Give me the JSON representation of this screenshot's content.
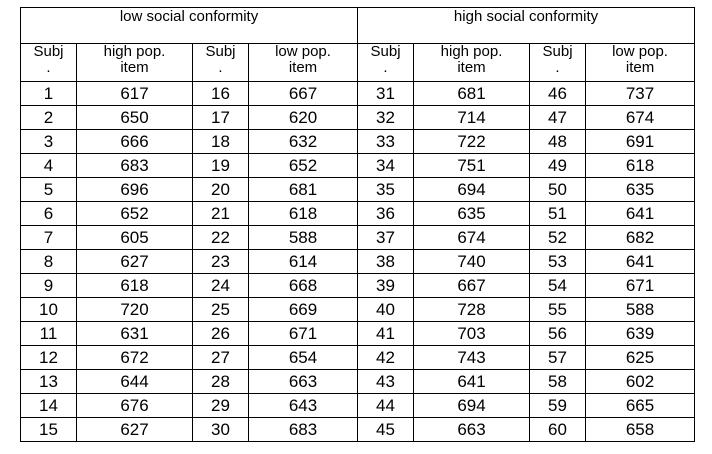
{
  "groups": {
    "low": "low social conformity",
    "high": "high social conformity"
  },
  "columns": {
    "subj_line1": "Subj",
    "subj_line2": ".",
    "high_pop_line1": "high pop.",
    "high_pop_line2": "item",
    "low_pop_line1": "low pop.",
    "low_pop_line2": "item"
  },
  "rows": [
    [
      "1",
      "617",
      "16",
      "667",
      "31",
      "681",
      "46",
      "737"
    ],
    [
      "2",
      "650",
      "17",
      "620",
      "32",
      "714",
      "47",
      "674"
    ],
    [
      "3",
      "666",
      "18",
      "632",
      "33",
      "722",
      "48",
      "691"
    ],
    [
      "4",
      "683",
      "19",
      "652",
      "34",
      "751",
      "49",
      "618"
    ],
    [
      "5",
      "696",
      "20",
      "681",
      "35",
      "694",
      "50",
      "635"
    ],
    [
      "6",
      "652",
      "21",
      "618",
      "36",
      "635",
      "51",
      "641"
    ],
    [
      "7",
      "605",
      "22",
      "588",
      "37",
      "674",
      "52",
      "682"
    ],
    [
      "8",
      "627",
      "23",
      "614",
      "38",
      "740",
      "53",
      "641"
    ],
    [
      "9",
      "618",
      "24",
      "668",
      "39",
      "667",
      "54",
      "671"
    ],
    [
      "10",
      "720",
      "25",
      "669",
      "40",
      "728",
      "55",
      "588"
    ],
    [
      "11",
      "631",
      "26",
      "671",
      "41",
      "703",
      "56",
      "639"
    ],
    [
      "12",
      "672",
      "27",
      "654",
      "42",
      "743",
      "57",
      "625"
    ],
    [
      "13",
      "644",
      "28",
      "663",
      "43",
      "641",
      "58",
      "602"
    ],
    [
      "14",
      "676",
      "29",
      "643",
      "44",
      "694",
      "59",
      "665"
    ],
    [
      "15",
      "627",
      "30",
      "683",
      "45",
      "663",
      "60",
      "658"
    ]
  ]
}
